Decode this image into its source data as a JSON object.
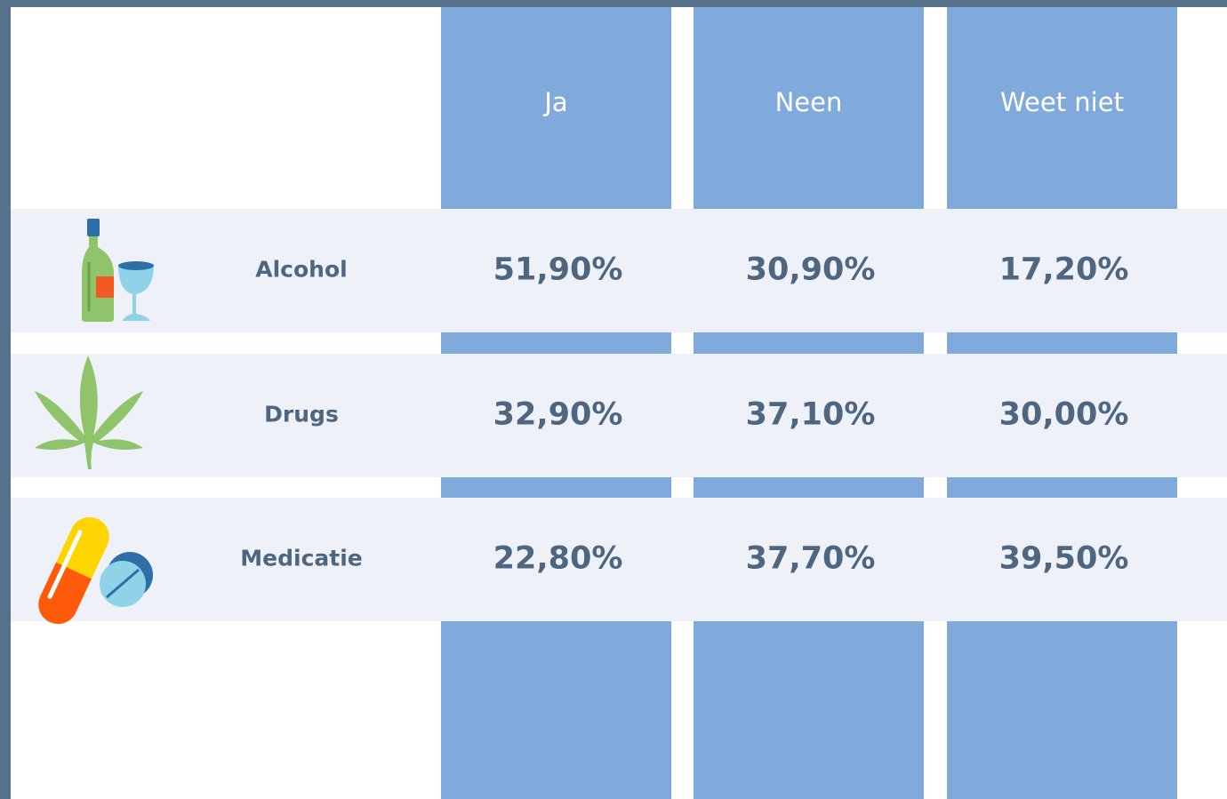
{
  "table": {
    "columns": [
      "Ja",
      "Neen",
      "Weet niet"
    ],
    "rows": [
      {
        "label": "Alcohol",
        "values": [
          "51,90%",
          "30,90%",
          "17,20%"
        ]
      },
      {
        "label": "Drugs",
        "values": [
          "32,90%",
          "37,10%",
          "30,00%"
        ]
      },
      {
        "label": "Medicatie",
        "values": [
          "22,80%",
          "37,70%",
          "39,50%"
        ]
      }
    ]
  }
}
